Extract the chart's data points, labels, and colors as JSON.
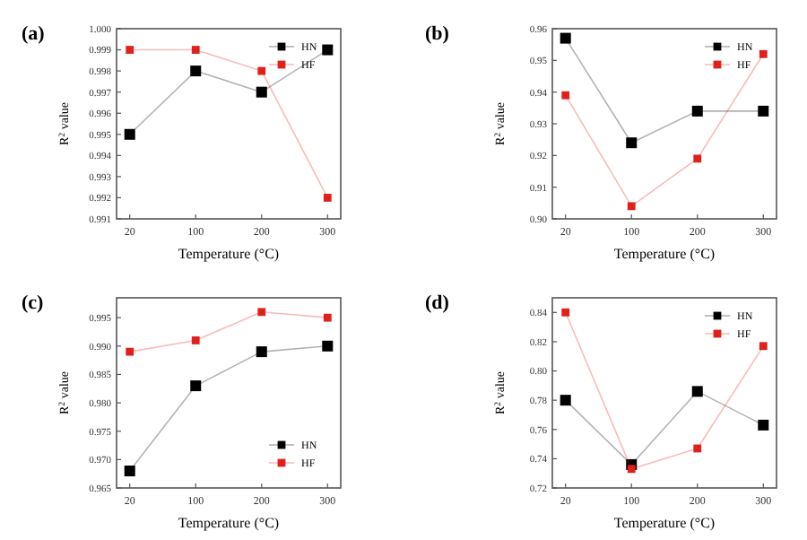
{
  "chart_data": [
    {
      "type": "line",
      "title": "(a)",
      "xlabel": "Temperature (°C)",
      "ylabel": "R$^{2}$ value",
      "categories": [
        "20",
        "100",
        "200",
        "300"
      ],
      "ylim": [
        0.991,
        1.0
      ],
      "yticks": [
        0.991,
        0.992,
        0.993,
        0.994,
        0.995,
        0.996,
        0.997,
        0.998,
        0.999,
        {
          "value": 1.0,
          "label": "1.000"
        }
      ],
      "marker": "square",
      "legend": "top right",
      "grid": false,
      "series": [
        {
          "name": "HN",
          "color": "#000000",
          "values": [
            0.995,
            0.998,
            0.997,
            0.999
          ]
        },
        {
          "name": "HF",
          "color": "#e0201b",
          "values": [
            0.999,
            0.999,
            0.998,
            0.992
          ]
        }
      ]
    },
    {
      "type": "line",
      "title": "(b)",
      "xlabel": "Temperature (°C)",
      "ylabel": "R$^{2}$ value",
      "categories": [
        "20",
        "100",
        "200",
        "300"
      ],
      "ylim": [
        0.9,
        0.96
      ],
      "yticks": [
        {
          "value": 0.9,
          "label": "0.90"
        },
        0.91,
        0.92,
        0.93,
        0.94,
        0.95,
        {
          "value": 0.96,
          "label": "0.96"
        }
      ],
      "marker": "square",
      "legend": "top right",
      "grid": false,
      "series": [
        {
          "name": "HN",
          "color": "#000000",
          "values": [
            0.957,
            0.924,
            0.934,
            0.934
          ]
        },
        {
          "name": "HF",
          "color": "#e0201b",
          "values": [
            0.939,
            0.904,
            0.919,
            0.952
          ]
        }
      ]
    },
    {
      "type": "line",
      "title": "(c)",
      "xlabel": "Temperature (°C)",
      "ylabel": "R$^{2}$ value",
      "categories": [
        "20",
        "100",
        "200",
        "300"
      ],
      "ylim": [
        0.965,
        0.9985
      ],
      "yticks": [
        0.965,
        {
          "value": 0.97,
          "label": "0.970"
        },
        0.975,
        {
          "value": 0.98,
          "label": "0.980"
        },
        0.985,
        {
          "value": 0.99,
          "label": "0.990"
        },
        0.995
      ],
      "marker": "square",
      "legend": "bottom right",
      "grid": false,
      "series": [
        {
          "name": "HN",
          "color": "#000000",
          "values": [
            0.968,
            0.983,
            0.989,
            0.99
          ]
        },
        {
          "name": "HF",
          "color": "#e0201b",
          "values": [
            0.989,
            0.991,
            0.996,
            0.995
          ]
        }
      ]
    },
    {
      "type": "line",
      "title": "(d)",
      "xlabel": "Temperature (°C)",
      "ylabel": "R$^{2}$ value",
      "categories": [
        "20",
        "100",
        "200",
        "300"
      ],
      "ylim": [
        0.72,
        0.85
      ],
      "yticks": [
        {
          "value": 0.72,
          "label": "0.72"
        },
        {
          "value": 0.74,
          "label": "0.74"
        },
        {
          "value": 0.76,
          "label": "0.76"
        },
        {
          "value": 0.78,
          "label": "0.78"
        },
        {
          "value": 0.8,
          "label": "0.80"
        },
        {
          "value": 0.82,
          "label": "0.82"
        },
        {
          "value": 0.84,
          "label": "0.84"
        }
      ],
      "marker": "square",
      "legend": "top right",
      "grid": false,
      "series": [
        {
          "name": "HN",
          "color": "#000000",
          "values": [
            0.78,
            0.736,
            0.786,
            0.763
          ]
        },
        {
          "name": "HF",
          "color": "#e0201b",
          "values": [
            0.84,
            0.733,
            0.747,
            0.817
          ]
        }
      ]
    }
  ]
}
